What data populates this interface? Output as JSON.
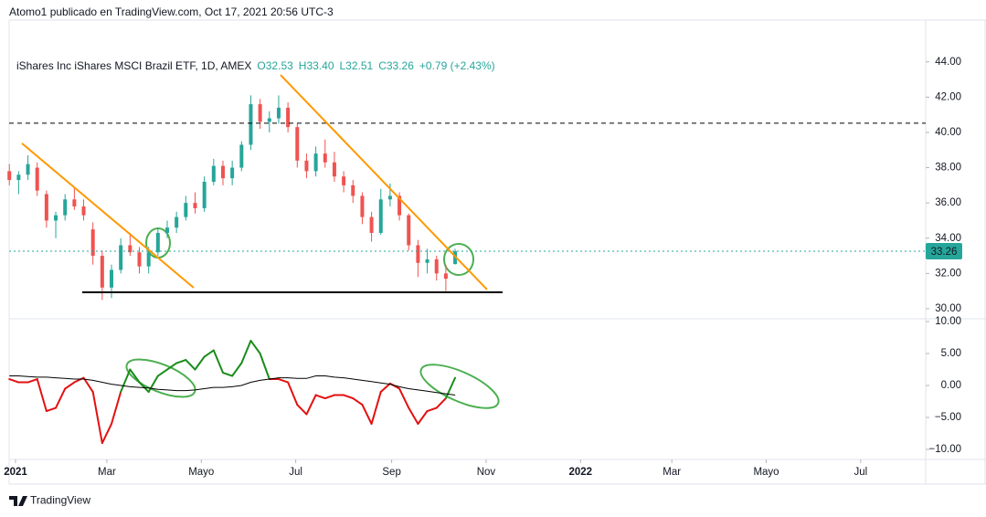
{
  "header": {
    "text": "Atomo1 publicado en TradingView.com, Oct 17, 2021 20:56 UTC-3"
  },
  "footer": {
    "brand": "TradingView"
  },
  "chart_data": [
    {
      "type": "candlestick",
      "title": "iShares Inc iShares MSCI Brazil ETF, 1D, AMEX",
      "ohlc_legend": [
        "O32.53",
        "H33.40",
        "L32.51",
        "C33.26",
        "+0.79 (+2.43%)"
      ],
      "x": [
        -4,
        2,
        8,
        14,
        20,
        26,
        32,
        38,
        44,
        50,
        56,
        62,
        68,
        74,
        80,
        86,
        92,
        98,
        104,
        110,
        116,
        122,
        128,
        134,
        140,
        146,
        152,
        158,
        164,
        170,
        176,
        182,
        188,
        194,
        200,
        206,
        212,
        218,
        224,
        230,
        236,
        242,
        248,
        254,
        260,
        266,
        272,
        278,
        284
      ],
      "open": [
        37.8,
        37.3,
        37.6,
        38.0,
        36.5,
        35.0,
        35.3,
        36.2,
        35.8,
        34.5,
        33.0,
        31.2,
        32.2,
        33.6,
        33.2,
        32.4,
        33.2,
        34.3,
        34.6,
        35.2,
        36.0,
        35.7,
        37.2,
        38.1,
        37.4,
        38.0,
        39.3,
        41.6,
        40.6,
        40.8,
        41.4,
        40.3,
        38.4,
        37.8,
        38.8,
        38.3,
        37.5,
        37.0,
        36.4,
        35.2,
        34.3,
        36.2,
        36.4,
        35.3,
        33.6,
        32.6,
        32.8,
        32.0,
        32.53
      ],
      "high": [
        38.2,
        37.8,
        38.7,
        38.3,
        36.7,
        35.5,
        36.5,
        36.9,
        36.2,
        34.9,
        33.3,
        32.5,
        34.0,
        34.3,
        33.5,
        33.5,
        34.6,
        35.0,
        35.5,
        36.4,
        36.6,
        37.5,
        38.5,
        38.4,
        38.4,
        39.5,
        42.1,
        41.9,
        41.2,
        42.1,
        41.7,
        40.5,
        38.8,
        39.2,
        39.6,
        38.9,
        37.8,
        37.3,
        36.6,
        35.5,
        36.8,
        37.1,
        36.6,
        35.4,
        33.9,
        33.4,
        33.0,
        32.5,
        33.4
      ],
      "low": [
        37.0,
        36.5,
        37.3,
        36.4,
        34.6,
        34.0,
        35.0,
        35.6,
        35.0,
        32.5,
        30.5,
        30.6,
        32.0,
        33.0,
        32.0,
        32.0,
        33.0,
        34.0,
        34.3,
        35.0,
        35.4,
        35.5,
        37.0,
        37.0,
        37.0,
        37.8,
        39.0,
        40.2,
        40.0,
        40.5,
        40.0,
        38.0,
        37.4,
        37.5,
        38.0,
        37.2,
        36.6,
        36.0,
        34.8,
        33.8,
        34.2,
        35.8,
        35.0,
        33.3,
        31.8,
        32.0,
        31.6,
        31.0,
        32.51
      ],
      "close": [
        37.3,
        37.6,
        38.2,
        36.7,
        35.0,
        35.3,
        36.2,
        35.8,
        35.3,
        33.0,
        31.2,
        32.2,
        33.6,
        33.2,
        32.4,
        33.2,
        34.3,
        34.6,
        35.2,
        36.0,
        35.7,
        37.2,
        38.1,
        37.4,
        38.0,
        39.3,
        41.6,
        40.6,
        40.8,
        41.4,
        40.3,
        38.4,
        37.8,
        38.8,
        38.3,
        37.5,
        37.0,
        36.4,
        35.2,
        34.3,
        36.2,
        36.4,
        35.3,
        33.6,
        32.6,
        32.8,
        32.0,
        31.7,
        33.26
      ],
      "up_color": "#26a69a",
      "down_color": "#ef5350",
      "last_price": 33.26,
      "last_price_color": "#26a69a",
      "hlines": [
        {
          "value": 40.52,
          "style": "dashed",
          "color": "#000000"
        },
        {
          "value": 33.26,
          "style": "dotted",
          "color": "#26a69a"
        }
      ],
      "segments": [
        {
          "x": [
            4.1,
            115.1
          ],
          "y": [
            39.38,
            31.19
          ],
          "color": "#ff9800"
        },
        {
          "x": [
            171.2,
            304.6
          ],
          "y": [
            43.26,
            31.09
          ],
          "color": "#ff9800"
        },
        {
          "x": [
            43.1,
            314.6
          ],
          "y": [
            30.93,
            30.93
          ],
          "color": "#000000"
        }
      ],
      "xlim": [
        -4.13,
        588
      ],
      "ylim": [
        29.48,
        46.37
      ],
      "yticks": [
        {
          "value": 30,
          "label": "30.00"
        },
        {
          "value": 32,
          "label": "32.00"
        },
        {
          "value": 34,
          "label": "34.00"
        },
        {
          "value": 36,
          "label": "36.00"
        },
        {
          "value": 38,
          "label": "38.00"
        },
        {
          "value": 40,
          "label": "40.00"
        },
        {
          "value": 42,
          "label": "42.00"
        },
        {
          "value": 44,
          "label": "44.00"
        }
      ]
    },
    {
      "type": "line",
      "x": [
        -4,
        2,
        8,
        14,
        20,
        26,
        32,
        38,
        44,
        50,
        56,
        62,
        68,
        74,
        80,
        86,
        92,
        98,
        104,
        110,
        116,
        122,
        128,
        134,
        140,
        146,
        152,
        158,
        164,
        170,
        176,
        182,
        188,
        194,
        200,
        206,
        212,
        218,
        224,
        230,
        236,
        242,
        248,
        254,
        260,
        266,
        272,
        278,
        284
      ],
      "series": [
        {
          "up_color": "#1a8c1a",
          "down_color": "#e31010",
          "values": [
            1,
            0.5,
            0.5,
            1,
            -4,
            -3.5,
            -0.5,
            0.5,
            1.2,
            -1,
            -9,
            -6,
            -1,
            2.5,
            0.5,
            -1,
            1.5,
            2.5,
            3.5,
            4,
            2.5,
            4.5,
            5.5,
            2,
            1.5,
            3.5,
            7,
            5,
            1,
            1,
            0.5,
            -3,
            -4.5,
            -1.5,
            -2,
            -1.5,
            -1.5,
            -2,
            -3,
            -6,
            -1,
            0.3,
            -0.5,
            -3.5,
            -6,
            -4,
            -3.5,
            -2,
            1.2
          ]
        },
        {
          "color": "#000000",
          "values": [
            1.5,
            1.5,
            1.4,
            1.3,
            1.3,
            1.2,
            1.1,
            1.0,
            1.0,
            0.8,
            0.5,
            0.2,
            0,
            -0.2,
            -0.3,
            -0.4,
            -0.6,
            -0.7,
            -0.8,
            -0.8,
            -0.7,
            -0.5,
            -0.3,
            -0.3,
            -0.2,
            0,
            0.5,
            0.8,
            1.0,
            1.2,
            1.2,
            1.1,
            1.1,
            1.5,
            1.5,
            1.3,
            1.2,
            1.0,
            0.8,
            0.6,
            0.4,
            0.2,
            -0.2,
            -0.5,
            -0.7,
            -0.9,
            -1.1,
            -1.3,
            -1.5
          ]
        }
      ],
      "xlim": [
        -4.13,
        588
      ],
      "ylim": [
        -11.57,
        10.29
      ],
      "yticks": [
        {
          "value": 10,
          "label": "10.00"
        },
        {
          "value": 5,
          "label": "5.00"
        },
        {
          "value": 0,
          "label": "0.00"
        },
        {
          "value": -5,
          "label": "−5.00"
        },
        {
          "value": -10,
          "label": "−10.00"
        }
      ],
      "xticks": [
        {
          "value": 0,
          "label": "2021"
        },
        {
          "value": 59,
          "label": "Mar"
        },
        {
          "value": 120,
          "label": "Mayo"
        },
        {
          "value": 181,
          "label": "Jul"
        },
        {
          "value": 243,
          "label": "Sep"
        },
        {
          "value": 304,
          "label": "Nov"
        },
        {
          "value": 365,
          "label": "2022"
        },
        {
          "value": 424,
          "label": "Mar"
        },
        {
          "value": 485,
          "label": "Mayo"
        },
        {
          "value": 546,
          "label": "Jul"
        }
      ]
    }
  ]
}
